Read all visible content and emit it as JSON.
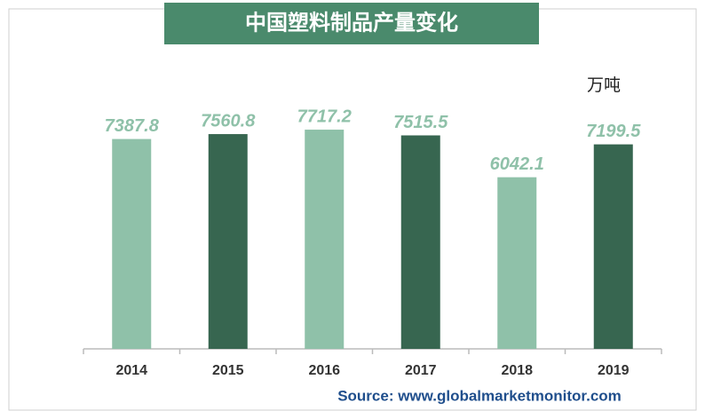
{
  "chart_data": {
    "type": "bar",
    "title": "中国塑料制品产量变化",
    "unit": "万吨",
    "categories": [
      "2014",
      "2015",
      "2016",
      "2017",
      "2018",
      "2019"
    ],
    "values": [
      7387.8,
      7560.8,
      7717.2,
      7515.5,
      6042.1,
      7199.5
    ],
    "colors": [
      "#8fc1a9",
      "#376650",
      "#8fc1a9",
      "#376650",
      "#8fc1a9",
      "#376650"
    ],
    "label_color": "#8fc1a9",
    "ylim": [
      0,
      10000
    ],
    "source": "Source: www.globalmarketmonitor.com"
  }
}
